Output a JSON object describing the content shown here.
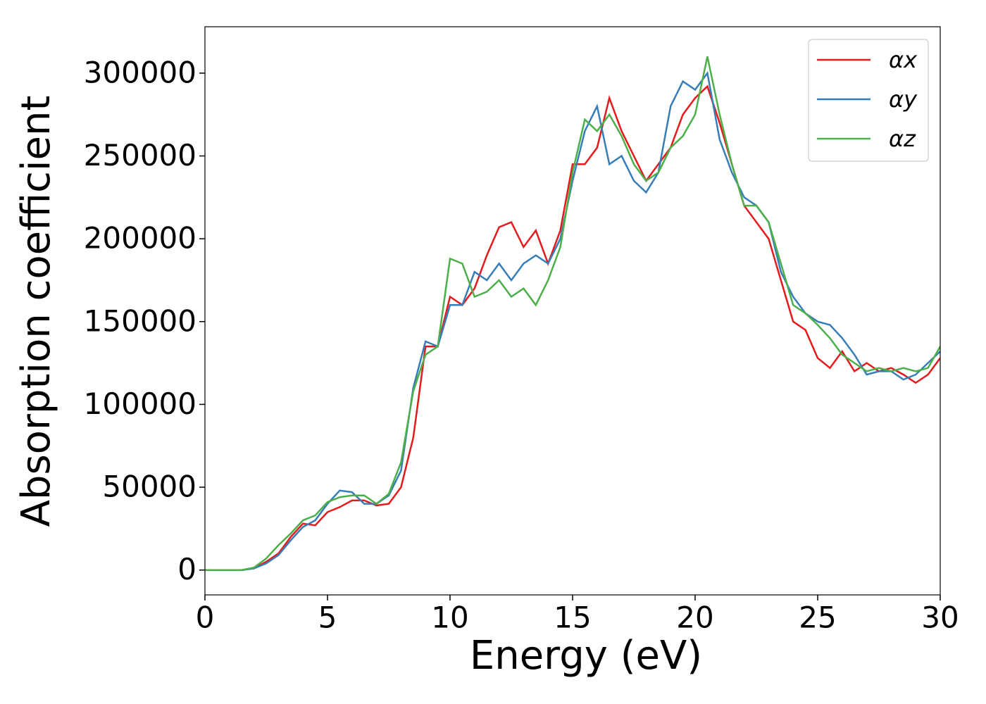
{
  "chart_data": {
    "type": "line",
    "xlabel": "Energy (eV)",
    "ylabel": "Absorption coefficient",
    "x": [
      0,
      0.5,
      1,
      1.5,
      2,
      2.5,
      3,
      3.5,
      4,
      4.5,
      5,
      5.5,
      6,
      6.5,
      7,
      7.5,
      8,
      8.5,
      9,
      9.5,
      10,
      10.5,
      11,
      11.5,
      12,
      12.5,
      13,
      13.5,
      14,
      14.5,
      15,
      15.5,
      16,
      16.5,
      17,
      17.5,
      18,
      18.5,
      19,
      19.5,
      20,
      20.5,
      21,
      21.5,
      22,
      22.5,
      23,
      23.5,
      24,
      24.5,
      25,
      25.5,
      26,
      26.5,
      27,
      27.5,
      28,
      28.5,
      29,
      29.5,
      30
    ],
    "series": [
      {
        "name": "αx",
        "color": "#e41a1c",
        "values": [
          0,
          0,
          0,
          0,
          1000,
          5000,
          10000,
          20000,
          28000,
          27000,
          35000,
          38000,
          42000,
          42000,
          39000,
          40000,
          50000,
          80000,
          135000,
          135000,
          165000,
          160000,
          170000,
          190000,
          207000,
          210000,
          195000,
          205000,
          185000,
          205000,
          245000,
          245000,
          255000,
          285000,
          265000,
          250000,
          235000,
          245000,
          255000,
          275000,
          285000,
          292000,
          270000,
          245000,
          220000,
          210000,
          200000,
          175000,
          150000,
          145000,
          128000,
          122000,
          132000,
          120000,
          125000,
          120000,
          122000,
          118000,
          113000,
          118000,
          128000
        ]
      },
      {
        "name": "αy",
        "color": "#377eb8",
        "values": [
          0,
          0,
          0,
          0,
          1000,
          4000,
          9000,
          18000,
          26000,
          30000,
          40000,
          48000,
          47000,
          40000,
          40000,
          45000,
          60000,
          110000,
          138000,
          135000,
          160000,
          160000,
          180000,
          175000,
          185000,
          175000,
          185000,
          190000,
          185000,
          200000,
          235000,
          265000,
          280000,
          245000,
          250000,
          235000,
          228000,
          240000,
          280000,
          295000,
          290000,
          300000,
          260000,
          240000,
          225000,
          220000,
          210000,
          180000,
          165000,
          155000,
          150000,
          148000,
          140000,
          130000,
          118000,
          120000,
          120000,
          115000,
          118000,
          125000,
          132000
        ]
      },
      {
        "name": "αz",
        "color": "#4daf4a",
        "values": [
          0,
          0,
          0,
          0,
          1500,
          7000,
          15000,
          22000,
          30000,
          33000,
          41000,
          44000,
          45000,
          45000,
          40000,
          46000,
          65000,
          108000,
          130000,
          135000,
          188000,
          185000,
          165000,
          168000,
          175000,
          165000,
          170000,
          160000,
          175000,
          195000,
          240000,
          272000,
          265000,
          275000,
          262000,
          245000,
          235000,
          240000,
          255000,
          262000,
          275000,
          310000,
          275000,
          245000,
          220000,
          220000,
          210000,
          185000,
          160000,
          155000,
          148000,
          140000,
          130000,
          125000,
          120000,
          122000,
          120000,
          122000,
          120000,
          122000,
          135000
        ]
      }
    ],
    "xlim": [
      0,
      30
    ],
    "xticks": [
      0,
      5,
      10,
      15,
      20,
      25,
      30
    ],
    "ylim": [
      -15000,
      328000
    ],
    "yticks": [
      0,
      50000,
      100000,
      150000,
      200000,
      250000,
      300000
    ],
    "legend": "upper right",
    "grid": false
  }
}
